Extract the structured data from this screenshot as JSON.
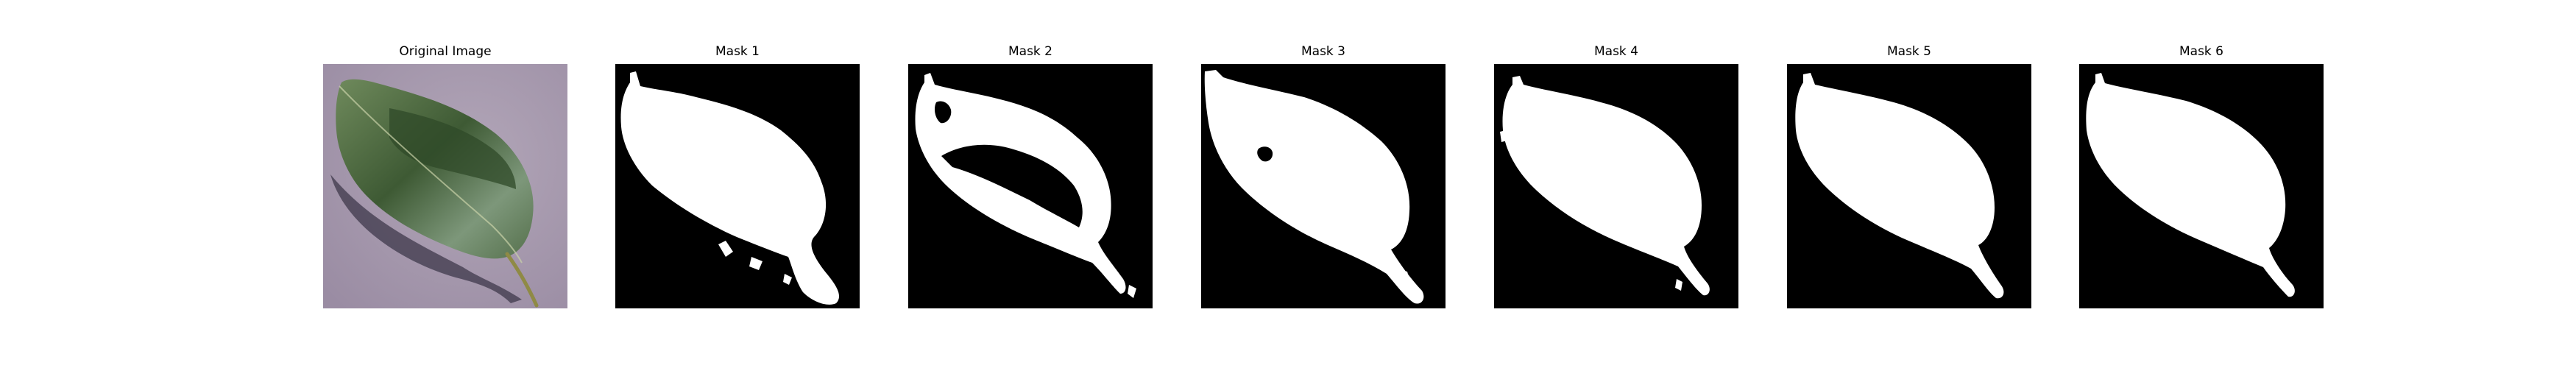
{
  "figure": {
    "panels": [
      {
        "title": "Original Image",
        "kind": "photo"
      },
      {
        "title": "Mask 1",
        "kind": "mask"
      },
      {
        "title": "Mask 2",
        "kind": "mask"
      },
      {
        "title": "Mask 3",
        "kind": "mask"
      },
      {
        "title": "Mask 4",
        "kind": "mask"
      },
      {
        "title": "Mask 5",
        "kind": "mask"
      },
      {
        "title": "Mask 6",
        "kind": "mask"
      }
    ]
  },
  "colors": {
    "photo_background": "#a497ac",
    "leaf_dark": "#3f5a35",
    "leaf_light": "#8aa485",
    "mask_background": "#000000",
    "mask_foreground": "#ffffff"
  }
}
